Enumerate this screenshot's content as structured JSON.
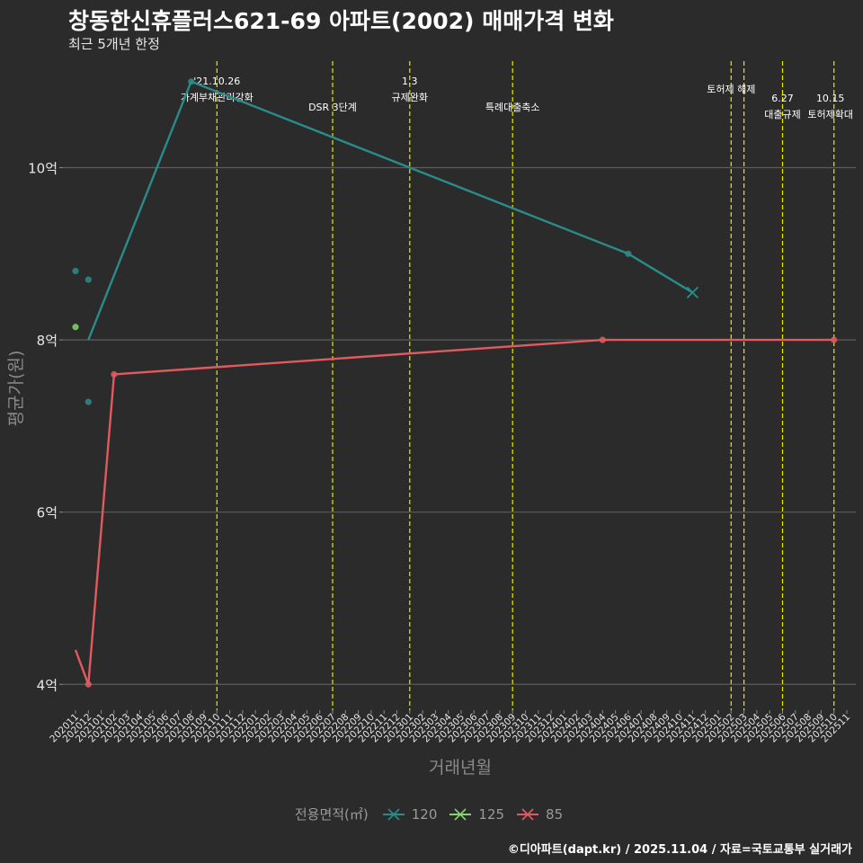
{
  "title": "창동한신휴플러스621-69 아파트(2002) 매매가격 변화",
  "subtitle": "최근 5개년 한정",
  "caption": "©디아파트(dapt.kr) / 2025.11.04 / 자료=국토교통부 실거래가",
  "legend": {
    "title": "전용면적(㎡)",
    "items": [
      {
        "label": "120",
        "color": "#2a8c8a"
      },
      {
        "label": "125",
        "color": "#86d46e"
      },
      {
        "label": "85",
        "color": "#e05a5f"
      }
    ]
  },
  "chart_data": {
    "type": "line",
    "title": "창동한신휴플러스621-69 아파트(2002) 매매가격 변화",
    "xlabel": "거래년월",
    "ylabel": "평균가(원)",
    "x_start": "202011",
    "x_end": "202511",
    "categories": [
      "202011",
      "202012",
      "202101",
      "202102",
      "202103",
      "202104",
      "202105",
      "202106",
      "202107",
      "202108",
      "202109",
      "202110",
      "202111",
      "202112",
      "202201",
      "202202",
      "202203",
      "202204",
      "202205",
      "202206",
      "202207",
      "202208",
      "202209",
      "202210",
      "202211",
      "202212",
      "202301",
      "202302",
      "202303",
      "202304",
      "202305",
      "202306",
      "202307",
      "202308",
      "202309",
      "202310",
      "202311",
      "202312",
      "202401",
      "202402",
      "202403",
      "202404",
      "202405",
      "202406",
      "202407",
      "202408",
      "202409",
      "202410",
      "202411",
      "202412",
      "202501",
      "202502",
      "202503",
      "202504",
      "202505",
      "202506",
      "202507",
      "202508",
      "202509",
      "202510",
      "202511"
    ],
    "y_ticks": [
      4,
      6,
      8,
      10
    ],
    "y_tick_labels": [
      "4억",
      "6억",
      "8억",
      "10억"
    ],
    "ylim": [
      3.7,
      11.3
    ],
    "y_unit": "억",
    "series": [
      {
        "name": "120",
        "color": "#2a8c8a",
        "line": [
          {
            "x": "202012",
            "y": 8.0
          },
          {
            "x": "202108",
            "y": 11.0
          },
          {
            "x": "202406",
            "y": 9.0
          },
          {
            "x": "202411",
            "y": 8.55
          }
        ],
        "points": [
          {
            "x": "202011",
            "y": 8.8
          },
          {
            "x": "202012",
            "y": 8.7
          },
          {
            "x": "202012",
            "y": 7.28
          },
          {
            "x": "202108",
            "y": 11.0
          },
          {
            "x": "202406",
            "y": 9.0
          }
        ],
        "last": {
          "x": "202411",
          "y": 8.55
        }
      },
      {
        "name": "125",
        "color": "#86d46e",
        "line": [],
        "points": [
          {
            "x": "202011",
            "y": 8.15
          }
        ],
        "last": null
      },
      {
        "name": "85",
        "color": "#e05a5f",
        "line": [
          {
            "x": "202011",
            "y": 4.4
          },
          {
            "x": "202012",
            "y": 4.0
          },
          {
            "x": "202102",
            "y": 7.6
          },
          {
            "x": "202404",
            "y": 8.0
          },
          {
            "x": "202510",
            "y": 8.0
          }
        ],
        "points": [
          {
            "x": "202012",
            "y": 4.0
          },
          {
            "x": "202102",
            "y": 7.6
          },
          {
            "x": "202404",
            "y": 8.0
          },
          {
            "x": "202510",
            "y": 8.0
          }
        ],
        "last": null
      }
    ],
    "events": [
      {
        "x": "202110",
        "lines": [
          "'21.10.26",
          "가계부채관리강화"
        ]
      },
      {
        "x": "202207",
        "lines": [
          "DSR 3단계"
        ]
      },
      {
        "x": "202301",
        "lines": [
          "1.3",
          "규제완화"
        ]
      },
      {
        "x": "202309",
        "lines": [
          "특례대출축소"
        ]
      },
      {
        "x": "202502",
        "lines": [
          "토허제 해제"
        ]
      },
      {
        "x": "202503",
        "lines": []
      },
      {
        "x": "202506",
        "lines": [
          "6.27",
          "대출규제"
        ]
      },
      {
        "x": "202510",
        "lines": [
          "10.15",
          "토허제확대"
        ]
      }
    ]
  }
}
